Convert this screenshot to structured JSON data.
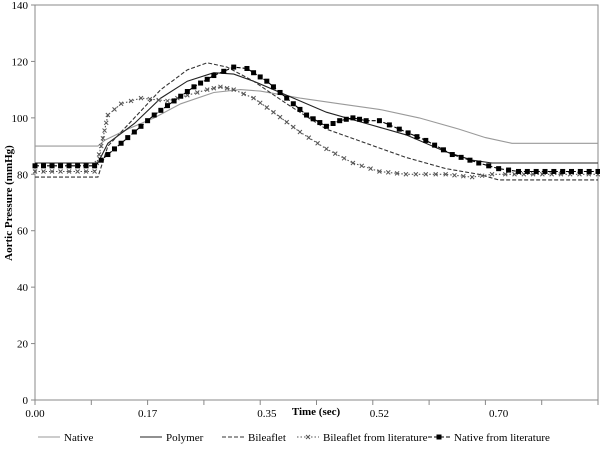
{
  "chart_data": {
    "type": "line",
    "title": "",
    "xlabel": "Time (sec)",
    "ylabel": "Aortic Pressure (mmHg)",
    "xlim": [
      0,
      0.85
    ],
    "ylim": [
      0,
      140
    ],
    "x_ticks": [
      0.0,
      0.17,
      0.35,
      0.52,
      0.7
    ],
    "x_tick_labels": [
      "0.00",
      "0.17",
      "0.35",
      "0.52",
      "0.70"
    ],
    "y_ticks": [
      0,
      20,
      40,
      60,
      80,
      100,
      120,
      140
    ],
    "y_tick_labels": [
      "0",
      "20",
      "40",
      "60",
      "80",
      "100",
      "120",
      "140"
    ],
    "grid": false,
    "legend_position": "bottom",
    "series": [
      {
        "name": "Native",
        "color": "#9a9a9a",
        "dash": "solid",
        "marker": "none",
        "points": [
          [
            0.0,
            90
          ],
          [
            0.095,
            90
          ],
          [
            0.105,
            92
          ],
          [
            0.14,
            96
          ],
          [
            0.18,
            100
          ],
          [
            0.22,
            105
          ],
          [
            0.27,
            109
          ],
          [
            0.31,
            110
          ],
          [
            0.34,
            109.5
          ],
          [
            0.4,
            107
          ],
          [
            0.46,
            105
          ],
          [
            0.52,
            103
          ],
          [
            0.58,
            100
          ],
          [
            0.64,
            96
          ],
          [
            0.68,
            93
          ],
          [
            0.7,
            92
          ],
          [
            0.72,
            91
          ],
          [
            0.85,
            91
          ]
        ]
      },
      {
        "name": "Polymer",
        "color": "#222222",
        "dash": "solid",
        "marker": "none",
        "points": [
          [
            0.0,
            84
          ],
          [
            0.095,
            84
          ],
          [
            0.11,
            91
          ],
          [
            0.15,
            98
          ],
          [
            0.19,
            107
          ],
          [
            0.23,
            113
          ],
          [
            0.27,
            116
          ],
          [
            0.3,
            115.5
          ],
          [
            0.33,
            113
          ],
          [
            0.38,
            108
          ],
          [
            0.44,
            102
          ],
          [
            0.5,
            98
          ],
          [
            0.56,
            94
          ],
          [
            0.62,
            88
          ],
          [
            0.66,
            85
          ],
          [
            0.69,
            84
          ],
          [
            0.85,
            84
          ]
        ]
      },
      {
        "name": "Bileaflet",
        "color": "#333333",
        "dash": "dashed",
        "marker": "none",
        "points": [
          [
            0.0,
            79
          ],
          [
            0.095,
            79
          ],
          [
            0.11,
            90
          ],
          [
            0.15,
            100
          ],
          [
            0.19,
            110
          ],
          [
            0.23,
            117
          ],
          [
            0.26,
            119.5
          ],
          [
            0.29,
            118
          ],
          [
            0.33,
            113
          ],
          [
            0.38,
            105
          ],
          [
            0.44,
            96
          ],
          [
            0.5,
            91
          ],
          [
            0.56,
            86
          ],
          [
            0.62,
            82
          ],
          [
            0.67,
            80
          ],
          [
            0.7,
            78
          ],
          [
            0.85,
            78
          ]
        ]
      },
      {
        "name": "Bileaflet from literature",
        "color": "#555555",
        "dash": "dotted",
        "marker": "x",
        "points": [
          [
            0.0,
            81
          ],
          [
            0.09,
            81
          ],
          [
            0.1,
            90
          ],
          [
            0.11,
            101
          ],
          [
            0.13,
            105
          ],
          [
            0.16,
            107
          ],
          [
            0.2,
            106
          ],
          [
            0.23,
            108
          ],
          [
            0.26,
            110
          ],
          [
            0.28,
            111
          ],
          [
            0.3,
            110
          ],
          [
            0.33,
            107
          ],
          [
            0.36,
            102
          ],
          [
            0.4,
            95
          ],
          [
            0.44,
            89
          ],
          [
            0.48,
            84
          ],
          [
            0.52,
            81
          ],
          [
            0.56,
            80
          ],
          [
            0.62,
            80
          ],
          [
            0.66,
            79
          ],
          [
            0.69,
            80
          ],
          [
            0.71,
            80
          ],
          [
            0.85,
            80
          ]
        ]
      },
      {
        "name": "Native from literature",
        "color": "#000000",
        "dash": "dashed",
        "marker": "square",
        "points": [
          [
            0.0,
            83
          ],
          [
            0.09,
            83
          ],
          [
            0.1,
            85
          ],
          [
            0.12,
            89
          ],
          [
            0.15,
            95
          ],
          [
            0.18,
            101
          ],
          [
            0.21,
            106
          ],
          [
            0.24,
            111
          ],
          [
            0.27,
            115
          ],
          [
            0.3,
            118
          ],
          [
            0.32,
            117.5
          ],
          [
            0.35,
            113
          ],
          [
            0.38,
            107
          ],
          [
            0.41,
            101
          ],
          [
            0.44,
            97
          ],
          [
            0.46,
            99
          ],
          [
            0.48,
            100
          ],
          [
            0.5,
            99
          ],
          [
            0.52,
            99
          ],
          [
            0.55,
            96
          ],
          [
            0.59,
            92
          ],
          [
            0.63,
            87
          ],
          [
            0.67,
            84
          ],
          [
            0.7,
            82
          ],
          [
            0.73,
            81
          ],
          [
            0.85,
            81
          ]
        ]
      }
    ]
  }
}
